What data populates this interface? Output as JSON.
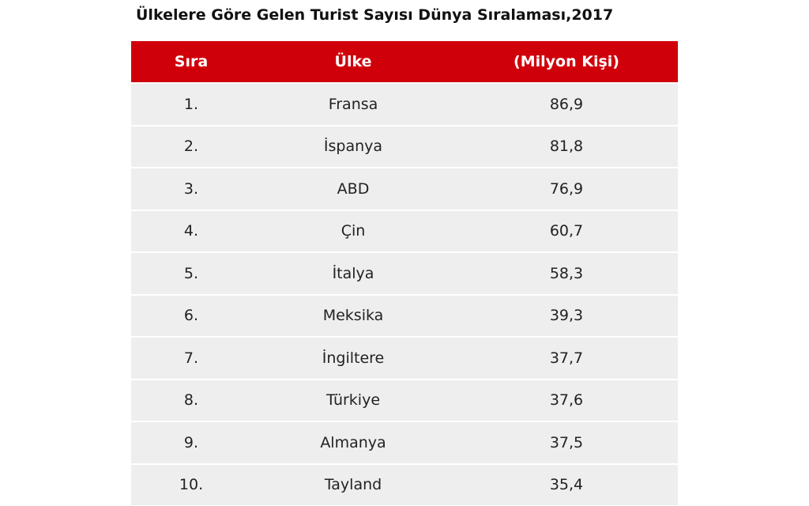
{
  "header": {
    "title": "Ülkelere Göre Gelen Turist Sayısı Dünya Sıralaması,2017"
  },
  "table": {
    "columns": [
      "Sıra",
      "Ülke",
      "(Milyon Kişi)"
    ],
    "rows": [
      [
        "1.",
        "Fransa",
        "86,9"
      ],
      [
        "2.",
        "İspanya",
        "81,8"
      ],
      [
        "3.",
        "ABD",
        "76,9"
      ],
      [
        "4.",
        "Çin",
        "60,7"
      ],
      [
        "5.",
        "İtalya",
        "58,3"
      ],
      [
        "6.",
        "Meksika",
        "39,3"
      ],
      [
        "7.",
        "İngiltere",
        "37,7"
      ],
      [
        "8.",
        "Türkiye",
        "37,6"
      ],
      [
        "9.",
        "Almanya",
        "37,5"
      ],
      [
        "10.",
        "Tayland",
        "35,4"
      ]
    ]
  }
}
